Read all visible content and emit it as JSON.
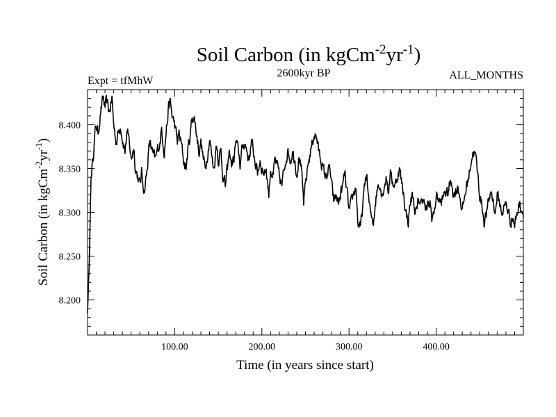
{
  "chart_data": {
    "type": "line",
    "title": {
      "base": "Soil Carbon (in kgCm",
      "sup1": "-2",
      "mid": "yr",
      "sup2": "-1",
      "end": ")"
    },
    "subtitle_left": "Expt = tfMhW",
    "subtitle_center": "2600kyr BP",
    "subtitle_right": "ALL_MONTHS",
    "xlabel": "Time (in years since start)",
    "ylabel": {
      "base": "Soil Carbon (in kgCm",
      "sup1": "-2",
      "mid": "yr",
      "sup2": "-1",
      "end": ")"
    },
    "xlim": [
      0,
      500
    ],
    "ylim": [
      8.16,
      8.44
    ],
    "xticks": [
      "100.00",
      "200.00",
      "300.00",
      "400.00"
    ],
    "yticks": [
      "8.200",
      "8.250",
      "8.300",
      "8.350",
      "8.400"
    ],
    "grid": false,
    "series": [
      {
        "x": [
          0,
          2,
          4,
          6,
          8,
          10,
          12,
          15,
          18,
          20,
          22,
          25,
          28,
          30,
          33,
          35,
          38,
          40,
          43,
          45,
          48,
          50,
          53,
          55,
          58,
          60,
          62,
          65,
          68,
          70,
          72,
          75,
          78,
          80,
          83,
          85,
          88,
          90,
          93,
          95,
          97,
          100,
          103,
          105,
          108,
          110,
          113,
          115,
          118,
          120,
          123,
          125,
          128,
          130,
          133,
          135,
          138,
          140,
          143,
          145,
          148,
          150,
          153,
          155,
          158,
          160,
          163,
          165,
          168,
          170,
          173,
          175,
          178,
          180,
          183,
          185,
          188,
          190,
          193,
          195,
          198,
          200,
          203,
          205,
          208,
          210,
          213,
          215,
          218,
          220,
          223,
          225,
          228,
          230,
          233,
          235,
          238,
          240,
          243,
          245,
          248,
          250,
          253,
          255,
          258,
          260,
          263,
          265,
          268,
          270,
          273,
          275,
          278,
          280,
          283,
          285,
          288,
          290,
          293,
          295,
          298,
          300,
          303,
          305,
          308,
          310,
          313,
          315,
          318,
          320,
          323,
          325,
          328,
          330,
          333,
          335,
          338,
          340,
          343,
          345,
          348,
          350,
          353,
          355,
          358,
          360,
          363,
          365,
          368,
          370,
          373,
          375,
          378,
          380,
          383,
          385,
          388,
          390,
          393,
          395,
          398,
          400,
          403,
          405,
          408,
          410,
          413,
          415,
          418,
          420,
          423,
          425,
          428,
          430,
          433,
          435,
          438,
          440,
          443,
          445,
          448,
          450,
          453,
          455,
          458,
          460,
          463,
          465,
          468,
          470,
          473,
          475,
          478,
          480,
          483,
          485,
          488,
          490,
          493,
          495,
          498,
          500
        ],
        "y": [
          8.185,
          8.245,
          8.34,
          8.36,
          8.385,
          8.4,
          8.39,
          8.415,
          8.43,
          8.42,
          8.425,
          8.415,
          8.43,
          8.4,
          8.38,
          8.39,
          8.4,
          8.385,
          8.37,
          8.39,
          8.38,
          8.36,
          8.375,
          8.35,
          8.34,
          8.33,
          8.345,
          8.325,
          8.345,
          8.37,
          8.38,
          8.365,
          8.36,
          8.37,
          8.38,
          8.395,
          8.37,
          8.39,
          8.42,
          8.425,
          8.41,
          8.4,
          8.38,
          8.39,
          8.375,
          8.36,
          8.35,
          8.37,
          8.39,
          8.41,
          8.405,
          8.39,
          8.37,
          8.38,
          8.36,
          8.35,
          8.37,
          8.385,
          8.36,
          8.35,
          8.38,
          8.36,
          8.37,
          8.345,
          8.33,
          8.345,
          8.37,
          8.355,
          8.36,
          8.38,
          8.37,
          8.355,
          8.375,
          8.38,
          8.37,
          8.36,
          8.38,
          8.37,
          8.355,
          8.345,
          8.36,
          8.35,
          8.345,
          8.35,
          8.32,
          8.35,
          8.34,
          8.36,
          8.35,
          8.34,
          8.33,
          8.345,
          8.365,
          8.37,
          8.36,
          8.37,
          8.36,
          8.345,
          8.365,
          8.35,
          8.31,
          8.33,
          8.355,
          8.365,
          8.38,
          8.39,
          8.385,
          8.37,
          8.36,
          8.35,
          8.34,
          8.345,
          8.35,
          8.33,
          8.31,
          8.32,
          8.31,
          8.32,
          8.33,
          8.345,
          8.32,
          8.3,
          8.31,
          8.32,
          8.33,
          8.29,
          8.28,
          8.3,
          8.33,
          8.345,
          8.31,
          8.295,
          8.29,
          8.31,
          8.33,
          8.335,
          8.32,
          8.33,
          8.34,
          8.325,
          8.345,
          8.335,
          8.33,
          8.34,
          8.35,
          8.335,
          8.32,
          8.3,
          8.29,
          8.31,
          8.32,
          8.305,
          8.3,
          8.315,
          8.31,
          8.32,
          8.3,
          8.305,
          8.31,
          8.295,
          8.3,
          8.32,
          8.315,
          8.31,
          8.315,
          8.325,
          8.32,
          8.33,
          8.335,
          8.32,
          8.325,
          8.33,
          8.315,
          8.3,
          8.32,
          8.33,
          8.345,
          8.36,
          8.37,
          8.365,
          8.34,
          8.32,
          8.305,
          8.29,
          8.3,
          8.31,
          8.325,
          8.315,
          8.3,
          8.32,
          8.31,
          8.3,
          8.305,
          8.31,
          8.3,
          8.29,
          8.295,
          8.285,
          8.3,
          8.31,
          8.305,
          8.3
        ]
      }
    ]
  }
}
